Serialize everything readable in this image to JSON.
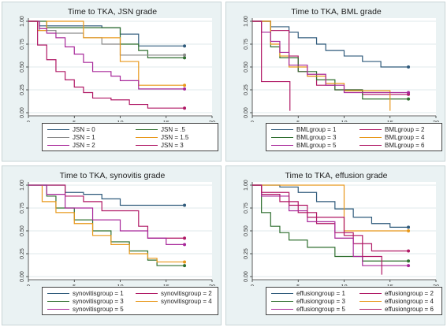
{
  "chart_data": [
    {
      "type": "line",
      "title": "Time to TKA, JSN grade",
      "xlabel": "Years after inclusion",
      "ylabel": "",
      "xlim": [
        0,
        20
      ],
      "ylim": [
        0,
        1
      ],
      "xticks": [
        "0",
        "5",
        "10",
        "15",
        "20"
      ],
      "yticks": [
        "0.00",
        "0.25",
        "0.50",
        "0.75",
        "1.00"
      ],
      "legend_position": "bottom",
      "series": [
        {
          "name": "JSN = 0",
          "color": "#2f5a7b",
          "steps": [
            [
              0,
              1
            ],
            [
              1.2,
              0.95
            ],
            [
              8,
              0.93
            ],
            [
              10,
              0.86
            ],
            [
              12,
              0.73
            ],
            [
              17,
              0.73
            ]
          ]
        },
        {
          "name": "JSN = .5",
          "color": "#2f6f2f",
          "steps": [
            [
              0,
              1
            ],
            [
              2,
              0.93
            ],
            [
              10,
              0.75
            ],
            [
              12,
              0.68
            ],
            [
              13,
              0.6
            ],
            [
              17,
              0.6
            ]
          ]
        },
        {
          "name": "JSN = 1",
          "color": "#8a8a8a",
          "steps": [
            [
              0,
              1
            ],
            [
              1.2,
              0.9
            ],
            [
              3,
              0.87
            ],
            [
              6,
              0.82
            ],
            [
              8,
              0.75
            ],
            [
              10,
              0.63
            ],
            [
              17,
              0.63
            ]
          ]
        },
        {
          "name": "JSN = 1.5",
          "color": "#e8981a",
          "steps": [
            [
              0,
              1
            ],
            [
              1,
              0.9
            ],
            [
              2,
              1
            ],
            [
              6,
              0.82
            ],
            [
              10,
              0.56
            ],
            [
              12,
              0.3
            ],
            [
              17,
              0.3
            ]
          ]
        },
        {
          "name": "JSN = 2",
          "color": "#a8289a",
          "steps": [
            [
              0,
              1
            ],
            [
              1.2,
              0.92
            ],
            [
              2,
              0.87
            ],
            [
              3,
              0.82
            ],
            [
              4,
              0.72
            ],
            [
              5,
              0.64
            ],
            [
              6,
              0.55
            ],
            [
              7,
              0.45
            ],
            [
              9,
              0.4
            ],
            [
              10,
              0.35
            ],
            [
              12,
              0.26
            ],
            [
              17,
              0.26
            ]
          ]
        },
        {
          "name": "JSN = 3",
          "color": "#b01865",
          "steps": [
            [
              0,
              1
            ],
            [
              1,
              0.74
            ],
            [
              2,
              0.58
            ],
            [
              3,
              0.45
            ],
            [
              4,
              0.36
            ],
            [
              5,
              0.28
            ],
            [
              6,
              0.22
            ],
            [
              7,
              0.16
            ],
            [
              9,
              0.14
            ],
            [
              11,
              0.09
            ],
            [
              13,
              0.05
            ],
            [
              17,
              0.05
            ]
          ]
        }
      ]
    },
    {
      "type": "line",
      "title": "Time to TKA, BML grade",
      "xlabel": "Years after inclusion",
      "ylabel": "",
      "xlim": [
        0,
        20
      ],
      "ylim": [
        0,
        1
      ],
      "xticks": [
        "0",
        "5",
        "10",
        "15",
        "20"
      ],
      "yticks": [
        "0.00",
        "0.25",
        "0.50",
        "0.75",
        "1.00"
      ],
      "legend_position": "bottom",
      "series": [
        {
          "name": "BMLgroup = 1",
          "color": "#2f5a7b",
          "steps": [
            [
              0,
              1
            ],
            [
              2,
              0.94
            ],
            [
              4,
              0.88
            ],
            [
              5,
              0.82
            ],
            [
              7,
              0.75
            ],
            [
              8,
              0.68
            ],
            [
              10,
              0.62
            ],
            [
              12,
              0.56
            ],
            [
              14,
              0.5
            ],
            [
              17,
              0.5
            ]
          ]
        },
        {
          "name": "BMLgroup = 2",
          "color": "#b01865",
          "steps": [
            [
              0,
              1
            ],
            [
              2,
              0.9
            ],
            [
              4,
              0.62
            ],
            [
              5,
              0.45
            ],
            [
              6,
              0.4
            ],
            [
              7,
              0.3
            ],
            [
              9,
              0.25
            ],
            [
              12,
              0.2
            ],
            [
              17,
              0.2
            ]
          ]
        },
        {
          "name": "BMLgroup = 3",
          "color": "#2f6f2f",
          "steps": [
            [
              0,
              1
            ],
            [
              2,
              0.72
            ],
            [
              3,
              0.6
            ],
            [
              5,
              0.45
            ],
            [
              7,
              0.36
            ],
            [
              9,
              0.25
            ],
            [
              12,
              0.15
            ],
            [
              17,
              0.15
            ]
          ]
        },
        {
          "name": "BMLgroup = 4",
          "color": "#e8981a",
          "steps": [
            [
              0,
              1
            ],
            [
              2,
              0.75
            ],
            [
              3,
              0.62
            ],
            [
              4,
              0.5
            ],
            [
              6,
              0.4
            ],
            [
              8,
              0.32
            ],
            [
              10,
              0.24
            ],
            [
              13,
              0.24
            ],
            [
              15,
              0.02
            ]
          ]
        },
        {
          "name": "BMLgroup = 5",
          "color": "#a8289a",
          "steps": [
            [
              0,
              1
            ],
            [
              1,
              0.88
            ],
            [
              2,
              0.78
            ],
            [
              3,
              0.66
            ],
            [
              4,
              0.52
            ],
            [
              6,
              0.42
            ],
            [
              8,
              0.3
            ],
            [
              10,
              0.22
            ],
            [
              12,
              0.22
            ],
            [
              17,
              0.22
            ]
          ]
        },
        {
          "name": "BMLgroup = 6",
          "color": "#b01865",
          "steps": [
            [
              0,
              1
            ],
            [
              1,
              0.34
            ],
            [
              4,
              0.34
            ],
            [
              4.1,
              0.02
            ]
          ]
        }
      ]
    },
    {
      "type": "line",
      "title": "Time to TKA, synovitis grade",
      "xlabel": "Years after inclusion",
      "ylabel": "",
      "xlim": [
        0,
        20
      ],
      "ylim": [
        0,
        1
      ],
      "xticks": [
        "0",
        "5",
        "10",
        "15",
        "20"
      ],
      "yticks": [
        "0.00",
        "0.25",
        "0.50",
        "0.75",
        "1.00"
      ],
      "legend_position": "bottom",
      "series": [
        {
          "name": "synovitisgroup = 1",
          "color": "#2f5a7b",
          "steps": [
            [
              0,
              1
            ],
            [
              4,
              0.92
            ],
            [
              6,
              0.9
            ],
            [
              8,
              0.85
            ],
            [
              10,
              0.78
            ],
            [
              17,
              0.78
            ]
          ]
        },
        {
          "name": "synovitisgroup = 2",
          "color": "#b01865",
          "steps": [
            [
              0,
              1
            ],
            [
              4,
              0.88
            ],
            [
              6,
              0.82
            ],
            [
              8,
              0.72
            ],
            [
              12,
              0.55
            ],
            [
              13,
              0.42
            ],
            [
              17,
              0.42
            ]
          ]
        },
        {
          "name": "synovitisgroup = 3",
          "color": "#2f6f2f",
          "steps": [
            [
              0,
              1
            ],
            [
              2,
              0.88
            ],
            [
              3,
              0.75
            ],
            [
              5,
              0.62
            ],
            [
              7,
              0.5
            ],
            [
              9,
              0.38
            ],
            [
              11,
              0.28
            ],
            [
              13,
              0.18
            ],
            [
              14,
              0.12
            ],
            [
              17,
              0.12
            ]
          ]
        },
        {
          "name": "synovitisgroup = 4",
          "color": "#e8981a",
          "steps": [
            [
              0,
              1
            ],
            [
              1.5,
              0.82
            ],
            [
              3,
              0.7
            ],
            [
              5,
              0.58
            ],
            [
              7,
              0.45
            ],
            [
              9,
              0.35
            ],
            [
              11,
              0.25
            ],
            [
              13,
              0.2
            ],
            [
              14,
              0.16
            ],
            [
              17,
              0.16
            ]
          ]
        },
        {
          "name": "synovitisgroup = 5",
          "color": "#a8289a",
          "steps": [
            [
              0,
              1
            ],
            [
              2,
              0.9
            ],
            [
              4,
              0.75
            ],
            [
              7,
              0.62
            ],
            [
              10,
              0.5
            ],
            [
              13,
              0.42
            ],
            [
              15,
              0.35
            ],
            [
              17,
              0.35
            ]
          ]
        }
      ]
    },
    {
      "type": "line",
      "title": "Time to TKA, effusion grade",
      "xlabel": "Years after inclusion",
      "ylabel": "",
      "xlim": [
        0,
        20
      ],
      "ylim": [
        0,
        1
      ],
      "xticks": [
        "0",
        "5",
        "10",
        "15",
        "20"
      ],
      "yticks": [
        "0.00",
        "0.25",
        "0.50",
        "0.75",
        "1.00"
      ],
      "legend_position": "bottom",
      "series": [
        {
          "name": "effusiongroup = 1",
          "color": "#2f5a7b",
          "steps": [
            [
              0,
              1
            ],
            [
              3,
              0.98
            ],
            [
              5,
              0.92
            ],
            [
              7,
              0.82
            ],
            [
              9,
              0.74
            ],
            [
              11,
              0.65
            ],
            [
              13,
              0.58
            ],
            [
              15,
              0.54
            ],
            [
              17,
              0.54
            ]
          ]
        },
        {
          "name": "effusiongroup = 2",
          "color": "#b01865",
          "steps": [
            [
              0,
              1
            ],
            [
              1,
              0.9
            ],
            [
              3,
              0.82
            ],
            [
              5,
              0.7
            ],
            [
              7,
              0.58
            ],
            [
              9,
              0.48
            ],
            [
              11,
              0.36
            ],
            [
              13,
              0.28
            ],
            [
              17,
              0.28
            ]
          ]
        },
        {
          "name": "effusiongroup = 3",
          "color": "#2f6f2f",
          "steps": [
            [
              0,
              1
            ],
            [
              1,
              0.7
            ],
            [
              2,
              0.55
            ],
            [
              3,
              0.48
            ],
            [
              4,
              0.4
            ],
            [
              6,
              0.32
            ],
            [
              9,
              0.22
            ],
            [
              12,
              0.17
            ],
            [
              17,
              0.17
            ]
          ]
        },
        {
          "name": "effusiongroup = 4",
          "color": "#e8981a",
          "steps": [
            [
              0,
              1
            ],
            [
              10,
              1
            ],
            [
              10,
              0.5
            ],
            [
              17,
              0.5
            ]
          ]
        },
        {
          "name": "effusiongroup = 5",
          "color": "#a8289a",
          "steps": [
            [
              0,
              1
            ],
            [
              1,
              0.88
            ],
            [
              4,
              0.72
            ],
            [
              6,
              0.6
            ],
            [
              9,
              0.42
            ],
            [
              11,
              0.22
            ],
            [
              12,
              0.12
            ],
            [
              17,
              0.12
            ]
          ]
        },
        {
          "name": "effusiongroup = 6",
          "color": "#b01865",
          "steps": [
            [
              0,
              1
            ],
            [
              1,
              0.92
            ],
            [
              4,
              0.78
            ],
            [
              6,
              0.65
            ],
            [
              10,
              0.45
            ],
            [
              12,
              0.22
            ],
            [
              14,
              0.22
            ],
            [
              14.1,
              0.02
            ]
          ]
        }
      ]
    }
  ]
}
